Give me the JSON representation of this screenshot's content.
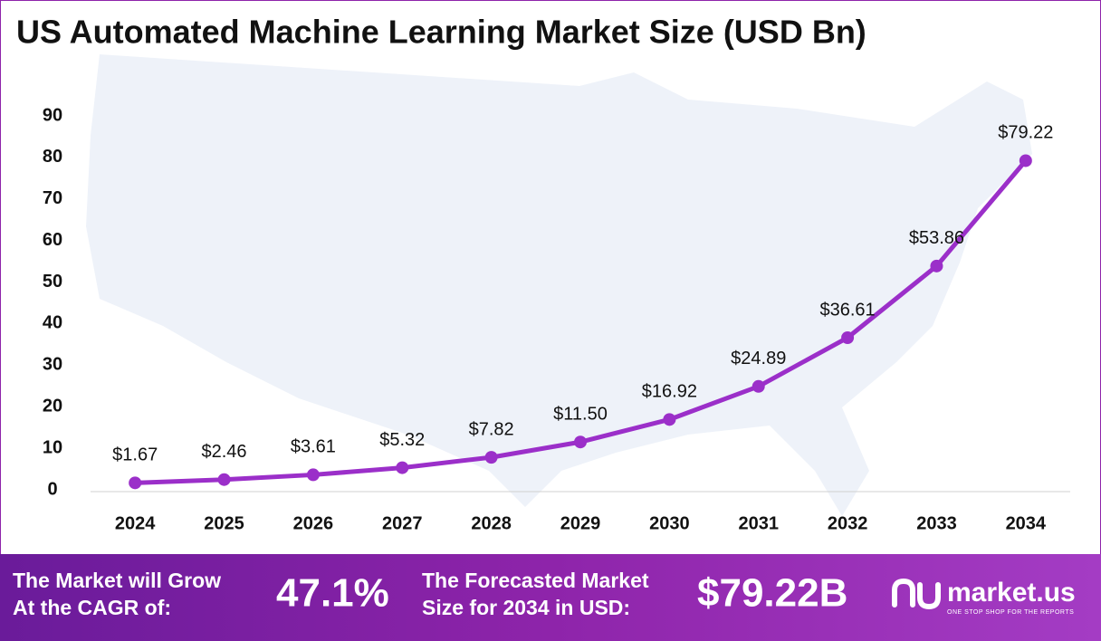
{
  "chart_data": {
    "type": "line",
    "title": "US Automated Machine Learning Market Size (USD Bn)",
    "categories": [
      "2024",
      "2025",
      "2026",
      "2027",
      "2028",
      "2029",
      "2030",
      "2031",
      "2032",
      "2033",
      "2034"
    ],
    "values": [
      1.67,
      2.46,
      3.61,
      5.32,
      7.82,
      11.5,
      16.92,
      24.89,
      36.61,
      53.86,
      79.22
    ],
    "value_labels": [
      "$1.67",
      "$2.46",
      "$3.61",
      "$5.32",
      "$7.82",
      "$11.50",
      "$16.92",
      "$24.89",
      "$36.61",
      "$53.86",
      "$79.22"
    ],
    "color": "#9b2fc9",
    "ylim": [
      0,
      90
    ],
    "yticks": [
      0,
      10,
      20,
      30,
      40,
      50,
      60,
      70,
      80,
      90
    ],
    "grid": false
  },
  "footer": {
    "cagr_label": [
      "The Market will Grow",
      "At the CAGR of:"
    ],
    "cagr_value": "47.1%",
    "forecast_label": [
      "The Forecasted Market",
      "Size for 2034 in USD:"
    ],
    "forecast_value": "$79.22B",
    "brand": "market.us",
    "tagline": "ONE STOP SHOP FOR THE REPORTS"
  }
}
